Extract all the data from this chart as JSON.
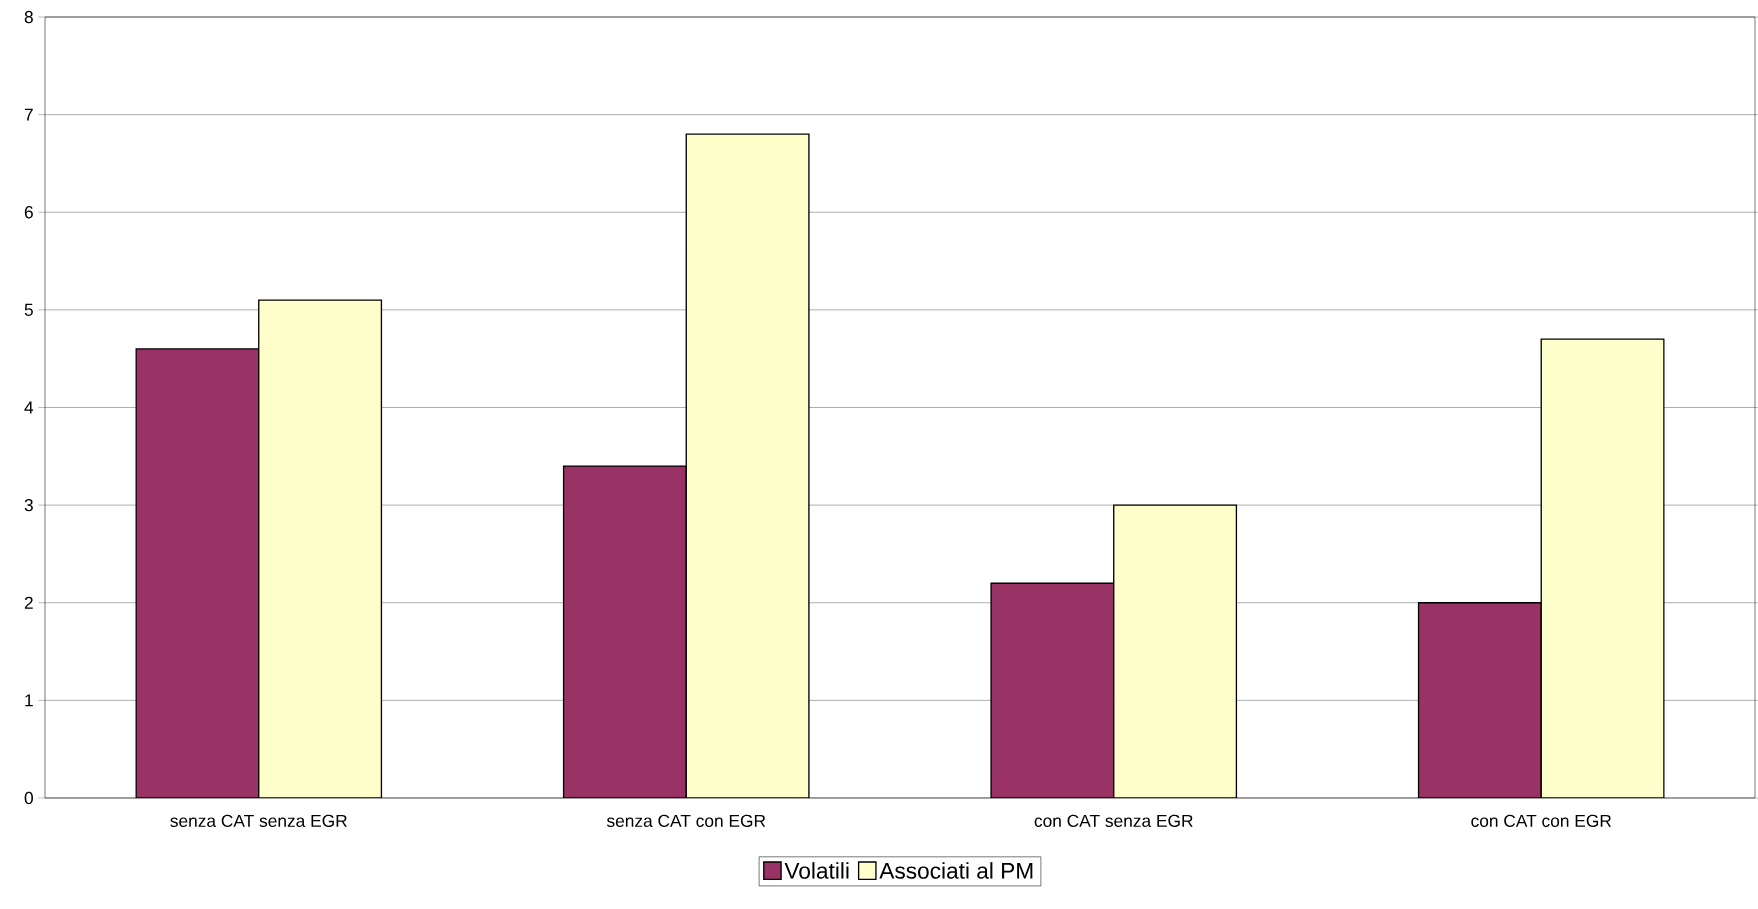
{
  "chart_data": {
    "type": "bar",
    "categories": [
      "senza CAT senza EGR",
      "senza CAT con EGR",
      "con CAT senza EGR",
      "con CAT con EGR"
    ],
    "series": [
      {
        "name": "Volatili",
        "color": "#993366",
        "values": [
          4.6,
          3.4,
          2.2,
          2.0
        ]
      },
      {
        "name": "Associati al PM",
        "color": "#ffffcc",
        "values": [
          5.1,
          6.8,
          3.0,
          4.7
        ]
      }
    ],
    "ylim": [
      0,
      8
    ],
    "yticks": [
      0,
      1,
      2,
      3,
      4,
      5,
      6,
      7,
      8
    ],
    "grid": "y",
    "legend": "bottom"
  }
}
